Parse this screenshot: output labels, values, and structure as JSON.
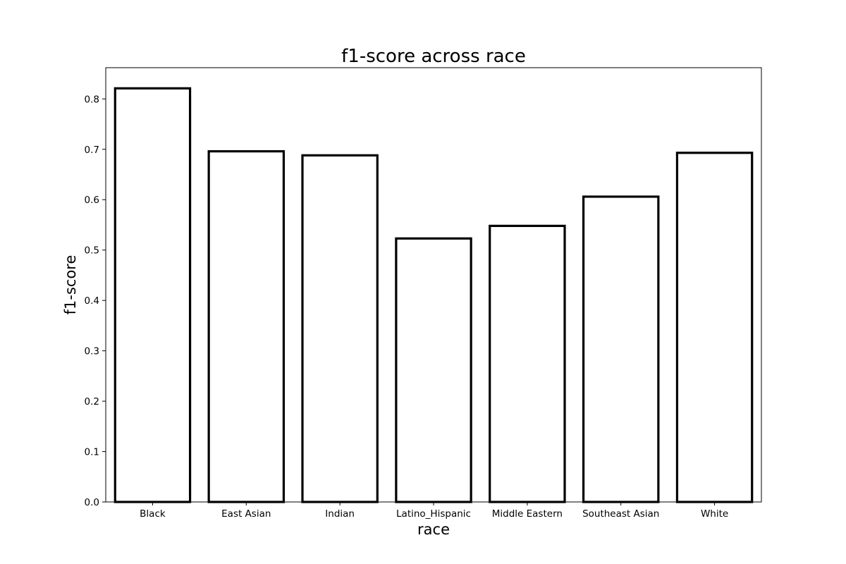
{
  "chart_data": {
    "type": "bar",
    "title": "f1-score across race",
    "xlabel": "race",
    "ylabel": "f1-score",
    "categories": [
      "Black",
      "East Asian",
      "Indian",
      "Latino_Hispanic",
      "Middle Eastern",
      "Southeast Asian",
      "White"
    ],
    "values": [
      0.821,
      0.696,
      0.688,
      0.523,
      0.548,
      0.606,
      0.693
    ],
    "ylim": [
      0,
      0.862
    ],
    "yticks": [
      0.0,
      0.1,
      0.2,
      0.3,
      0.4,
      0.5,
      0.6,
      0.7,
      0.8
    ],
    "ytick_labels": [
      "0.0",
      "0.1",
      "0.2",
      "0.3",
      "0.4",
      "0.5",
      "0.6",
      "0.7",
      "0.8"
    ],
    "grid": false,
    "bar_fill": "#ffffff",
    "bar_edge": "#000000"
  }
}
